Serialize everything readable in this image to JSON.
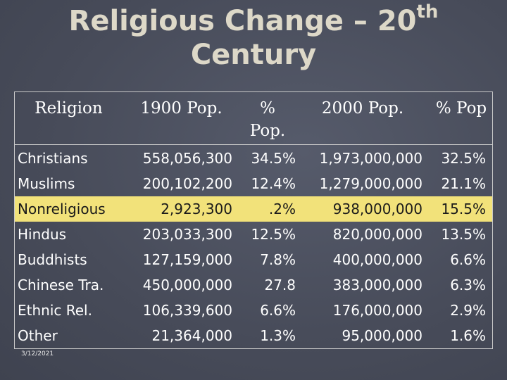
{
  "header": {
    "title_main": "Religious Change – 20",
    "title_sup": "th",
    "title_line2": "Century"
  },
  "table": {
    "columns": [
      "Religion",
      "1900 Pop.",
      "% Pop.",
      "2000 Pop.",
      "% Pop"
    ],
    "rows": [
      [
        "Christians",
        "558,056,300",
        "34.5%",
        "1,973,000,000",
        "32.5%"
      ],
      [
        "Muslims",
        "200,102,200",
        "12.4%",
        "1,279,000,000",
        "21.1%"
      ],
      [
        "Nonreligious",
        "2,923,300",
        ".2%",
        "938,000,000",
        "15.5%"
      ],
      [
        "Hindus",
        "203,033,300",
        "12.5%",
        "820,000,000",
        "13.5%"
      ],
      [
        "Buddhists",
        "127,159,000",
        "7.8%",
        "400,000,000",
        "6.6%"
      ],
      [
        "Chinese Tra.",
        "450,000,000",
        "27.8",
        "383,000,000",
        "6.3%"
      ],
      [
        "Ethnic Rel.",
        "106,339,600",
        "6.6%",
        "176,000,000",
        "2.9%"
      ],
      [
        "Other",
        "21,364,000",
        "1.3%",
        "95,000,000",
        "1.6%"
      ]
    ]
  },
  "footer": {
    "date": "3/12/2021"
  }
}
